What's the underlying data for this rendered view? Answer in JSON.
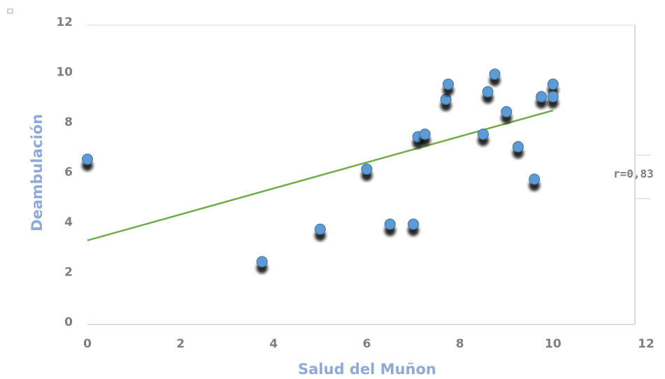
{
  "chart_data": {
    "type": "scatter",
    "title": "",
    "xlabel": "Salud del Muñon",
    "ylabel": "Deambulación",
    "xlim": [
      0,
      12
    ],
    "ylim": [
      0,
      12
    ],
    "xticks": [
      "0",
      "2",
      "4",
      "6",
      "8",
      "10",
      "12"
    ],
    "yticks": [
      "0",
      "2",
      "4",
      "6",
      "8",
      "10",
      "12"
    ],
    "grid": false,
    "legend": "none",
    "series": [
      {
        "points": [
          {
            "x": 0,
            "y": 6.5
          },
          {
            "x": 3.75,
            "y": 2.4
          },
          {
            "x": 5,
            "y": 3.7
          },
          {
            "x": 6,
            "y": 6.1
          },
          {
            "x": 6.5,
            "y": 3.9
          },
          {
            "x": 7,
            "y": 3.9
          },
          {
            "x": 7.1,
            "y": 7.4
          },
          {
            "x": 7.25,
            "y": 7.5
          },
          {
            "x": 7.7,
            "y": 8.9
          },
          {
            "x": 7.75,
            "y": 9.5
          },
          {
            "x": 8.5,
            "y": 7.5
          },
          {
            "x": 8.6,
            "y": 9.2
          },
          {
            "x": 8.75,
            "y": 9.9
          },
          {
            "x": 9,
            "y": 8.4
          },
          {
            "x": 9.25,
            "y": 7.0
          },
          {
            "x": 9.6,
            "y": 5.7
          },
          {
            "x": 9.75,
            "y": 9.0
          },
          {
            "x": 10,
            "y": 9.5
          },
          {
            "x": 10,
            "y": 9.0
          }
        ]
      }
    ],
    "trendline": {
      "x": [
        0,
        10
      ],
      "y": [
        3.25,
        8.45
      ]
    },
    "annotation": "r=0,83"
  },
  "colors": {
    "point": "#5b9bd5",
    "point_stroke": "#41719c",
    "trendline": "#70ad47",
    "axis_title": "#8eaadb",
    "tick": "#7f7f7f"
  }
}
